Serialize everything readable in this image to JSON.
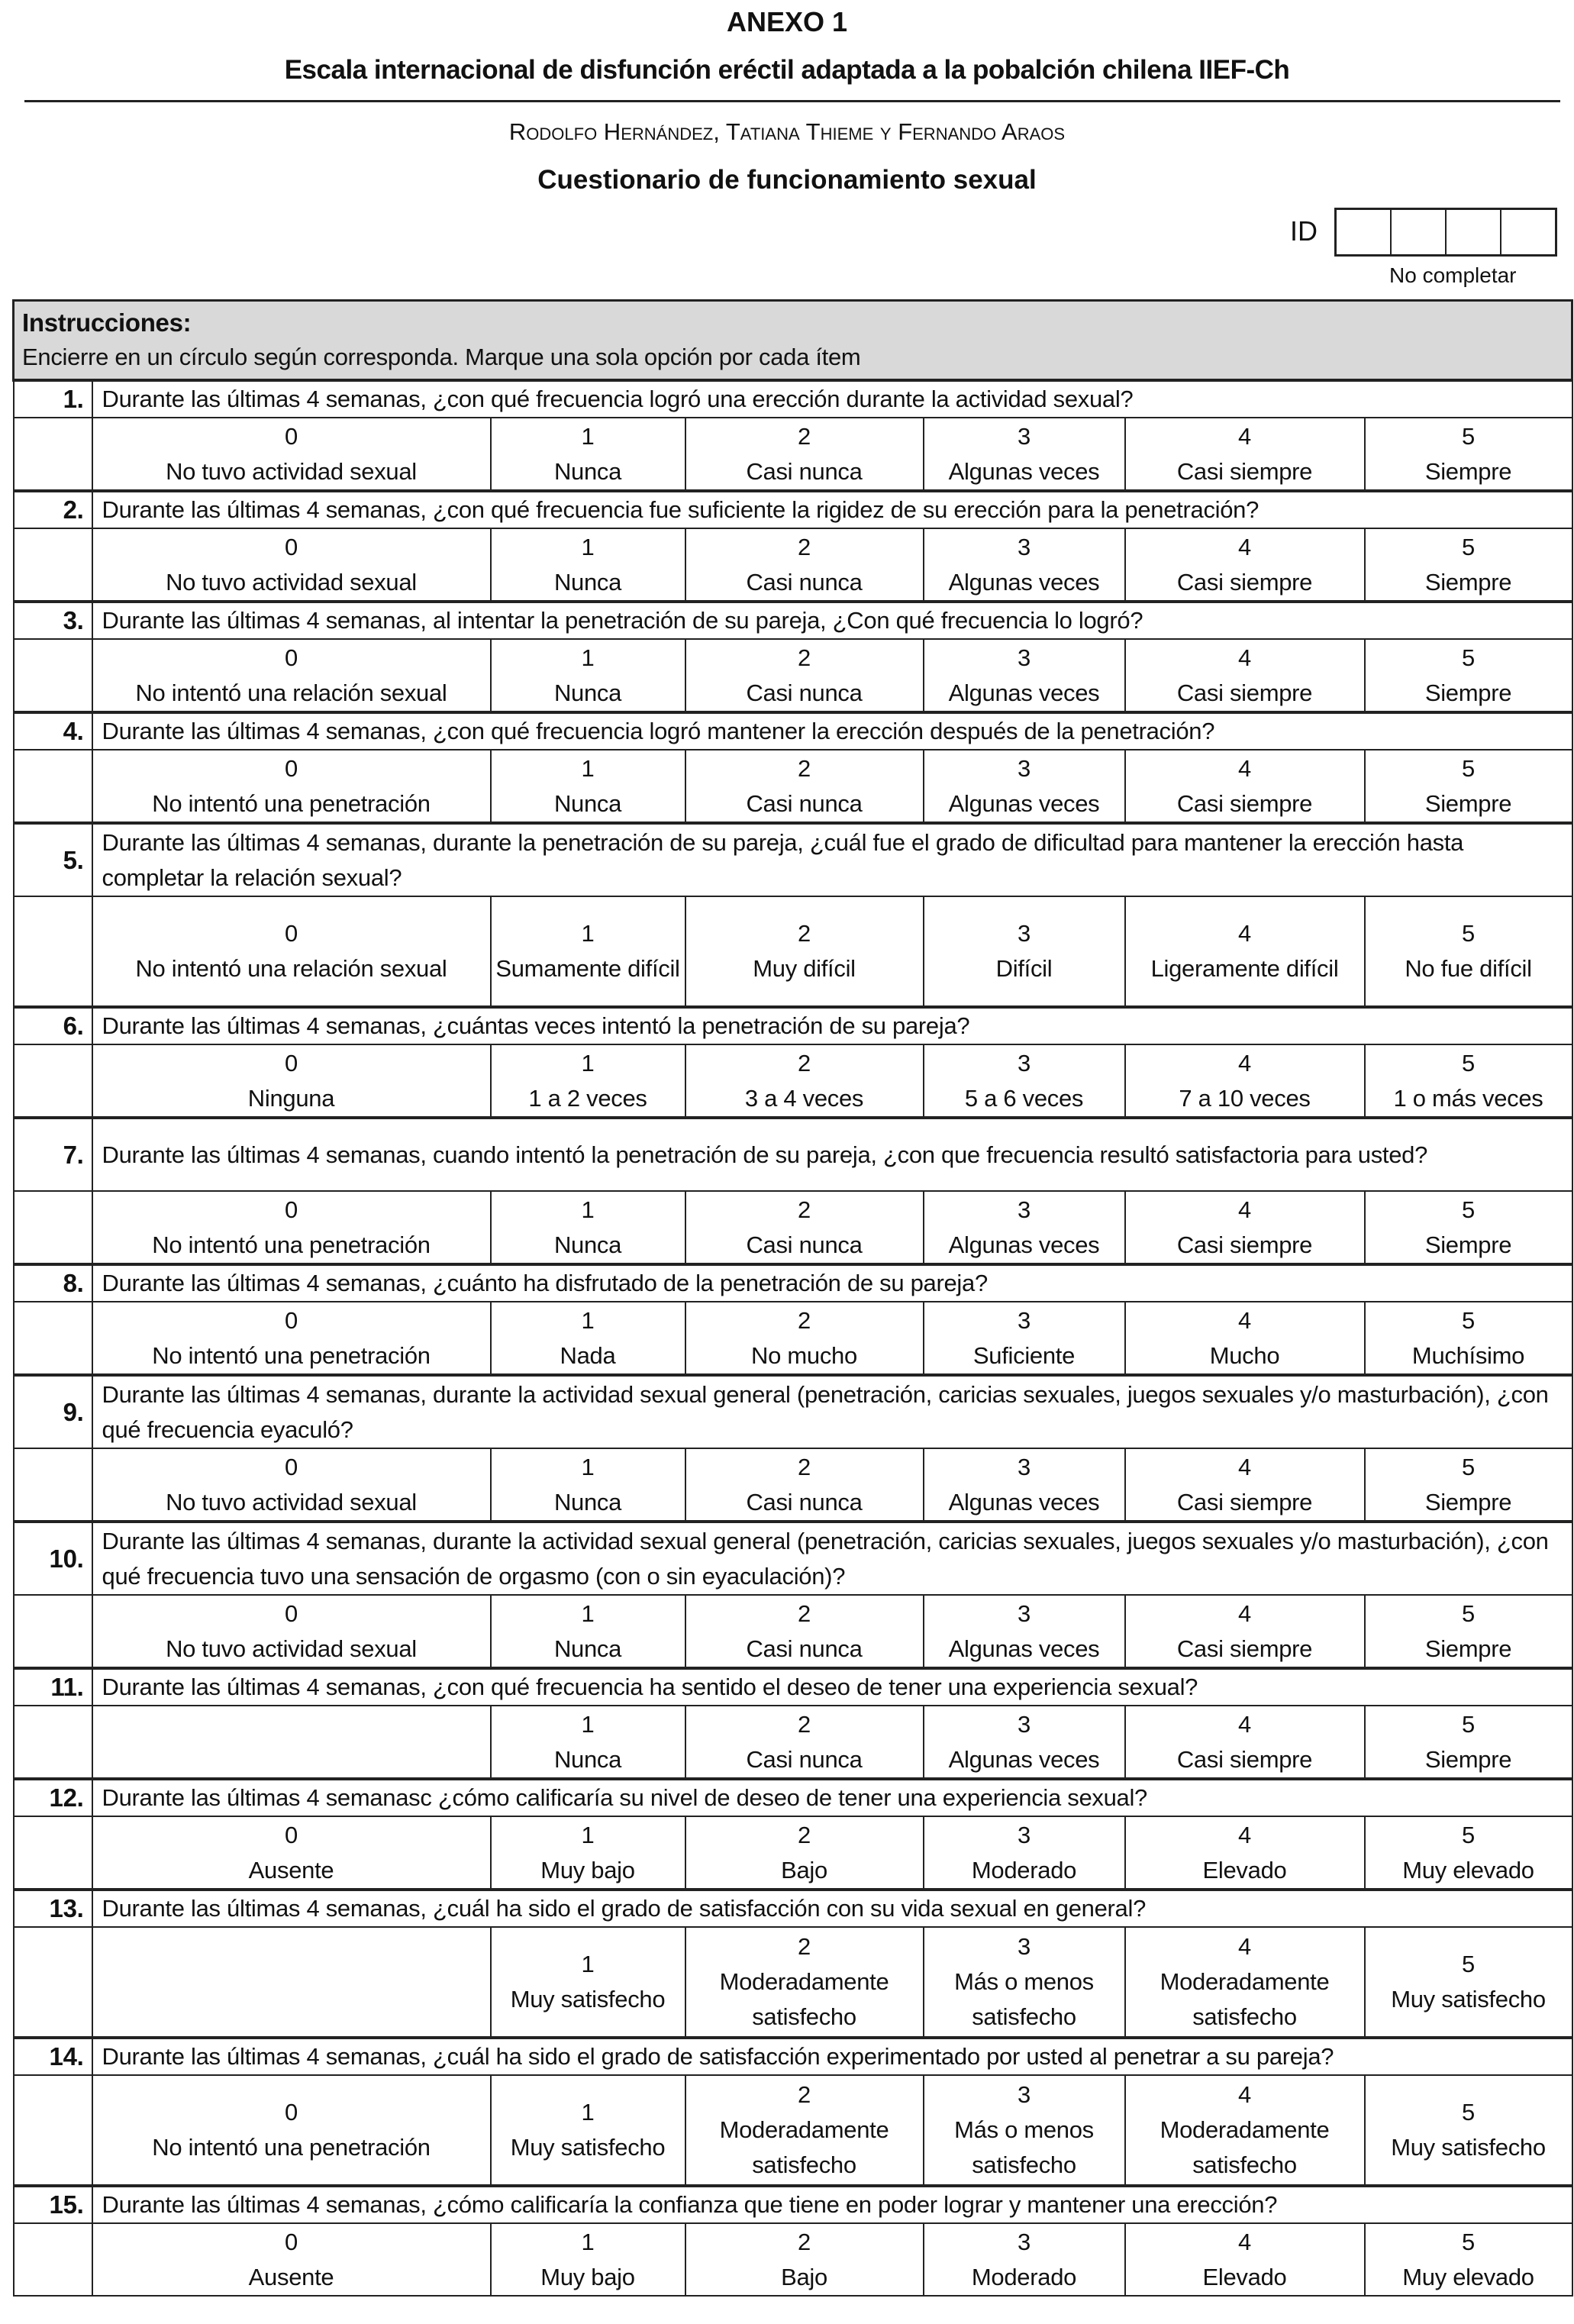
{
  "header": {
    "annex": "ANEXO 1",
    "title": "Escala internacional de disfunción eréctil adaptada a la pobalción chilena IIEF-Ch",
    "authors": "Rodolfo Hernández, Tatiana Thieme y Fernando Araos",
    "subtitle": "Cuestionario de funcionamiento sexual",
    "id_label": "ID",
    "id_note": "No completar"
  },
  "instructions": {
    "heading": "Instrucciones:",
    "text": "Encierre en un círculo según corresponda. Marque una sola opción por cada ítem"
  },
  "questions": [
    {
      "num": "1.",
      "text": "Durante las últimas 4 semanas, ¿con qué frecuencia logró una erección durante la actividad sexual?",
      "options": [
        [
          "0",
          "No tuvo actividad sexual"
        ],
        [
          "1",
          "Nunca"
        ],
        [
          "2",
          "Casi nunca"
        ],
        [
          "3",
          "Algunas veces"
        ],
        [
          "4",
          "Casi siempre"
        ],
        [
          "5",
          "Siempre"
        ]
      ]
    },
    {
      "num": "2.",
      "text": "Durante las últimas 4 semanas, ¿con qué frecuencia fue suficiente la rigidez de su erección para la penetración?",
      "options": [
        [
          "0",
          "No tuvo actividad sexual"
        ],
        [
          "1",
          "Nunca"
        ],
        [
          "2",
          "Casi nunca"
        ],
        [
          "3",
          "Algunas veces"
        ],
        [
          "4",
          "Casi siempre"
        ],
        [
          "5",
          "Siempre"
        ]
      ]
    },
    {
      "num": "3.",
      "text": "Durante las últimas 4 semanas, al intentar la penetración de su pareja, ¿Con qué frecuencia lo logró?",
      "options": [
        [
          "0",
          "No intentó una relación sexual"
        ],
        [
          "1",
          "Nunca"
        ],
        [
          "2",
          "Casi nunca"
        ],
        [
          "3",
          "Algunas veces"
        ],
        [
          "4",
          "Casi siempre"
        ],
        [
          "5",
          "Siempre"
        ]
      ]
    },
    {
      "num": "4.",
      "text": "Durante las últimas 4 semanas, ¿con qué frecuencia logró mantener la erección después de la penetración?",
      "options": [
        [
          "0",
          "No intentó una penetración"
        ],
        [
          "1",
          "Nunca"
        ],
        [
          "2",
          "Casi nunca"
        ],
        [
          "3",
          "Algunas veces"
        ],
        [
          "4",
          "Casi siempre"
        ],
        [
          "5",
          "Siempre"
        ]
      ]
    },
    {
      "num": "5.",
      "text": "Durante las últimas 4 semanas, durante la penetración de su pareja, ¿cuál fue el grado de dificultad para mantener la erección hasta completar la relación sexual?",
      "options": [
        [
          "0",
          "No intentó una relación sexual"
        ],
        [
          "1",
          "Sumamente difícil"
        ],
        [
          "2",
          "Muy difícil"
        ],
        [
          "3",
          "Difícil"
        ],
        [
          "4",
          "Ligeramente difícil"
        ],
        [
          "5",
          "No fue difícil"
        ]
      ]
    },
    {
      "num": "6.",
      "text": "Durante las últimas 4 semanas, ¿cuántas veces intentó la penetración de su pareja?",
      "options": [
        [
          "0",
          "Ninguna"
        ],
        [
          "1",
          "1 a 2 veces"
        ],
        [
          "2",
          "3 a 4 veces"
        ],
        [
          "3",
          "5 a 6 veces"
        ],
        [
          "4",
          "7 a 10 veces"
        ],
        [
          "5",
          "1 o más veces"
        ]
      ]
    },
    {
      "num": "7.",
      "text": "Durante las últimas 4 semanas, cuando intentó la penetración de su pareja, ¿con que frecuencia resultó satisfactoria para usted?",
      "options": [
        [
          "0",
          "No intentó una penetración"
        ],
        [
          "1",
          "Nunca"
        ],
        [
          "2",
          "Casi nunca"
        ],
        [
          "3",
          "Algunas veces"
        ],
        [
          "4",
          "Casi siempre"
        ],
        [
          "5",
          "Siempre"
        ]
      ]
    },
    {
      "num": "8.",
      "text": "Durante las últimas 4 semanas, ¿cuánto ha disfrutado de la penetración de su pareja?",
      "options": [
        [
          "0",
          "No intentó una penetración"
        ],
        [
          "1",
          "Nada"
        ],
        [
          "2",
          "No mucho"
        ],
        [
          "3",
          "Suficiente"
        ],
        [
          "4",
          "Mucho"
        ],
        [
          "5",
          "Muchísimo"
        ]
      ]
    },
    {
      "num": "9.",
      "text": "Durante las últimas 4 semanas, durante la actividad sexual general (penetración, caricias sexuales, juegos sexuales y/o masturbación), ¿con qué frecuencia eyaculó?",
      "options": [
        [
          "0",
          "No tuvo actividad sexual"
        ],
        [
          "1",
          "Nunca"
        ],
        [
          "2",
          "Casi nunca"
        ],
        [
          "3",
          "Algunas veces"
        ],
        [
          "4",
          "Casi siempre"
        ],
        [
          "5",
          "Siempre"
        ]
      ]
    },
    {
      "num": "10.",
      "text": "Durante las últimas 4 semanas, durante la actividad sexual general (penetración, caricias sexuales, juegos sexuales y/o masturbación), ¿con qué frecuencia tuvo una sensación de orgasmo (con o sin eyaculación)?",
      "options": [
        [
          "0",
          "No tuvo actividad sexual"
        ],
        [
          "1",
          "Nunca"
        ],
        [
          "2",
          "Casi nunca"
        ],
        [
          "3",
          "Algunas veces"
        ],
        [
          "4",
          "Casi siempre"
        ],
        [
          "5",
          "Siempre"
        ]
      ]
    },
    {
      "num": "11.",
      "text": "Durante las últimas 4 semanas, ¿con qué frecuencia ha sentido el deseo de tener una experiencia sexual?",
      "options": [
        [
          "",
          ""
        ],
        [
          "1",
          "Nunca"
        ],
        [
          "2",
          "Casi nunca"
        ],
        [
          "3",
          "Algunas veces"
        ],
        [
          "4",
          "Casi siempre"
        ],
        [
          "5",
          "Siempre"
        ]
      ]
    },
    {
      "num": "12.",
      "text": "Durante las últimas 4 semanasc ¿cómo calificaría su nivel de deseo de tener una experiencia sexual?",
      "options": [
        [
          "0",
          "Ausente"
        ],
        [
          "1",
          "Muy bajo"
        ],
        [
          "2",
          "Bajo"
        ],
        [
          "3",
          "Moderado"
        ],
        [
          "4",
          "Elevado"
        ],
        [
          "5",
          "Muy elevado"
        ]
      ]
    },
    {
      "num": "13.",
      "text": "Durante las últimas 4 semanas, ¿cuál ha sido el grado de satisfacción con su vida sexual en general?",
      "options": [
        [
          "",
          ""
        ],
        [
          "1",
          "Muy satisfecho"
        ],
        [
          "2",
          "Moderadamente satisfecho"
        ],
        [
          "3",
          "Más o menos satisfecho"
        ],
        [
          "4",
          "Moderadamente satisfecho"
        ],
        [
          "5",
          "Muy satisfecho"
        ]
      ]
    },
    {
      "num": "14.",
      "text": "Durante las últimas 4 semanas, ¿cuál ha sido el grado de satisfacción experimentado por usted al penetrar a su pareja?",
      "options": [
        [
          "0",
          "No intentó una penetración"
        ],
        [
          "1",
          "Muy satisfecho"
        ],
        [
          "2",
          "Moderadamente satisfecho"
        ],
        [
          "3",
          "Más o menos satisfecho"
        ],
        [
          "4",
          "Moderadamente satisfecho"
        ],
        [
          "5",
          "Muy satisfecho"
        ]
      ]
    },
    {
      "num": "15.",
      "text": "Durante las últimas 4 semanas, ¿cómo calificaría la confianza que tiene en poder lograr y mantener una erección?",
      "options": [
        [
          "0",
          "Ausente"
        ],
        [
          "1",
          "Muy bajo"
        ],
        [
          "2",
          "Bajo"
        ],
        [
          "3",
          "Moderado"
        ],
        [
          "4",
          "Elevado"
        ],
        [
          "5",
          "Muy elevado"
        ]
      ]
    }
  ]
}
